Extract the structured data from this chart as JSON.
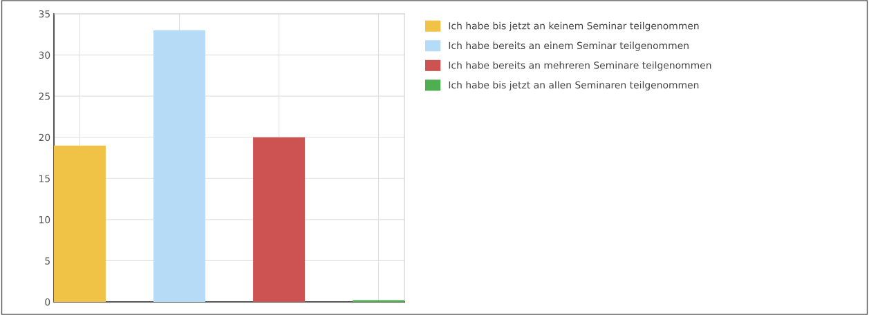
{
  "chart_data": {
    "type": "bar",
    "categories": [
      null,
      null,
      null,
      null
    ],
    "series": [
      {
        "name": "Ich habe bis jetzt an keinem Seminar teilgenommen",
        "color": "#f0c246",
        "values": [
          19,
          null,
          null,
          null
        ]
      },
      {
        "name": "Ich habe bereits an einem Seminar teilgenommen",
        "color": "#b5dbf7",
        "values": [
          null,
          33,
          null,
          null
        ]
      },
      {
        "name": "Ich habe bereits an mehreren Seminare teilgenommen",
        "color": "#cd5353",
        "values": [
          null,
          null,
          20,
          null
        ]
      },
      {
        "name": "Ich habe bis jetzt an allen Seminaren teilgenommen",
        "color": "#4fae50",
        "values": [
          null,
          null,
          null,
          0.2
        ]
      }
    ],
    "ylim": [
      0,
      35
    ],
    "yticks": [
      0,
      5,
      10,
      15,
      20,
      25,
      30,
      35
    ],
    "grid": true,
    "legend": "right"
  }
}
